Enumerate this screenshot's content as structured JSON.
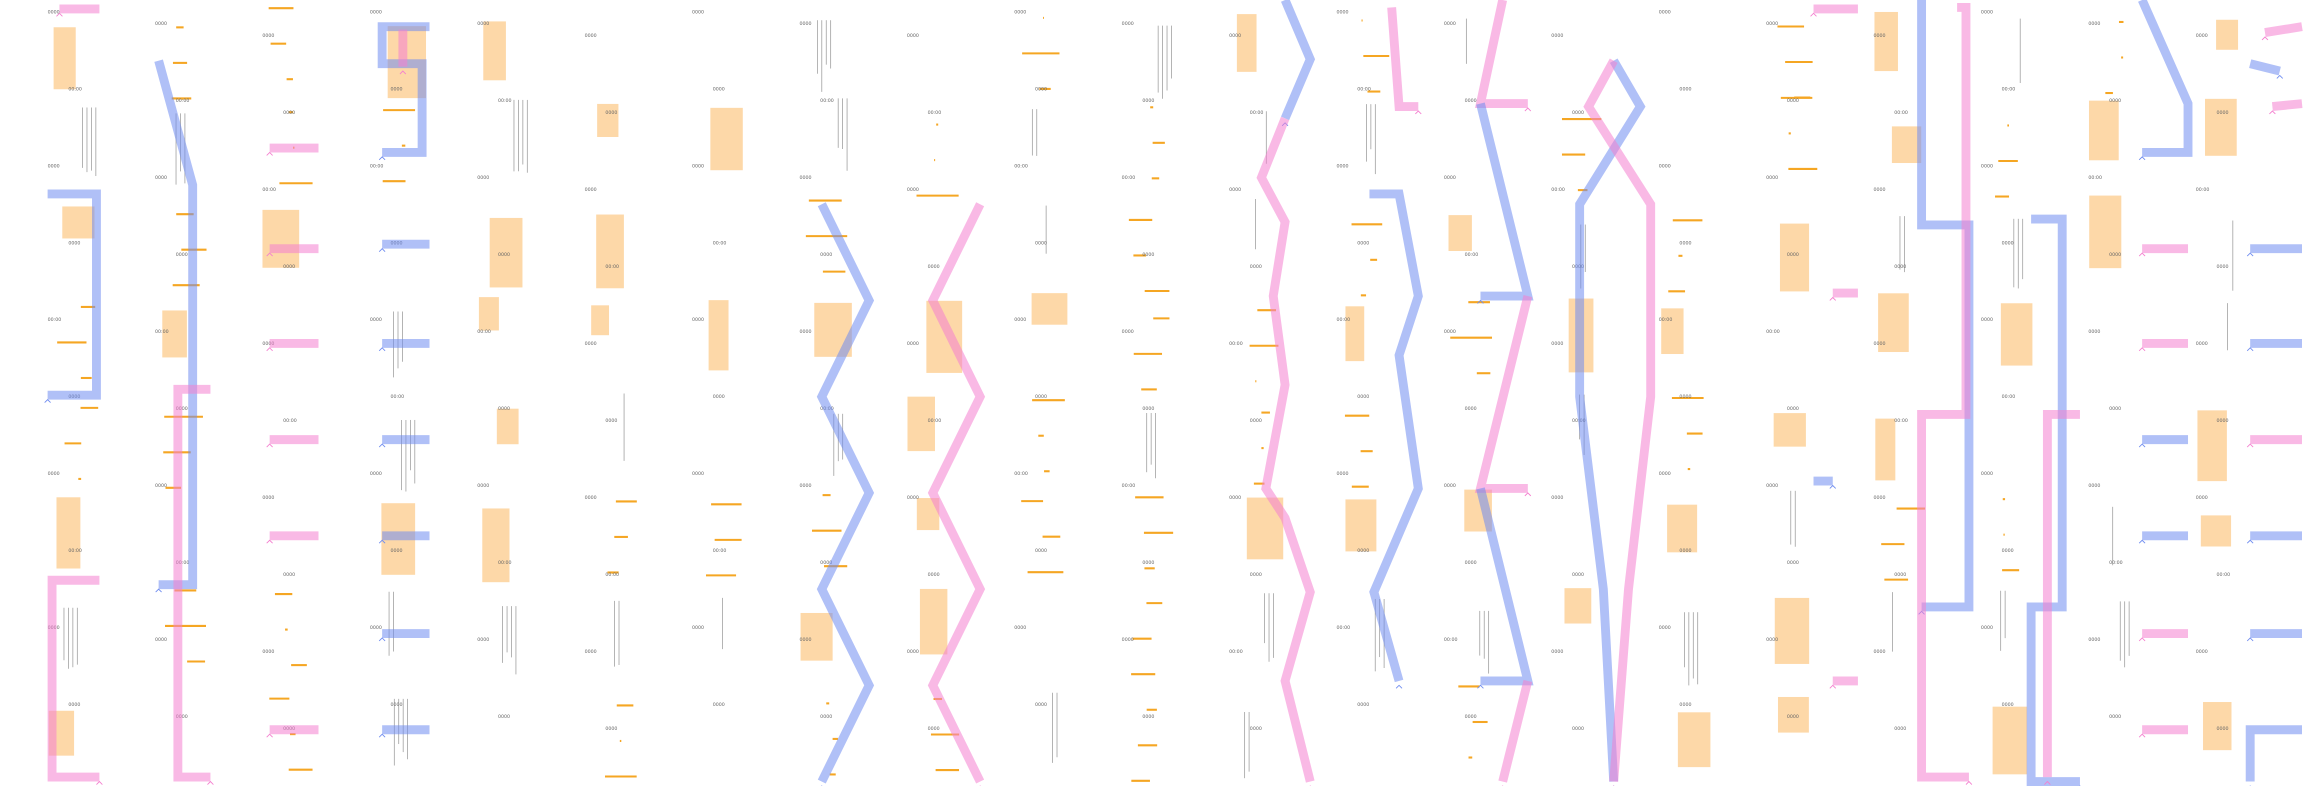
{
  "columns": [
    {
      "labels": [
        "0000",
        "00:00",
        "0000",
        "0000",
        "00:00",
        "0000",
        "0000",
        "00:00",
        "0000",
        "0000"
      ]
    },
    {
      "labels": [
        "0000",
        "00:00",
        "0000",
        "0000",
        "00:00",
        "0000",
        "0000",
        "00:00",
        "0000",
        "0000"
      ]
    },
    {
      "labels": [
        "0000",
        "0000",
        "00:00",
        "0000",
        "0000",
        "00:00",
        "0000",
        "0000",
        "0000",
        "0000"
      ]
    },
    {
      "labels": [
        "0000",
        "0000",
        "00:00",
        "0000",
        "0000",
        "00:00",
        "0000",
        "0000",
        "0000",
        "0000"
      ]
    },
    {
      "labels": [
        "0000",
        "00:00",
        "0000",
        "0000",
        "00:00",
        "0000",
        "0000",
        "00:00",
        "0000",
        "0000"
      ]
    },
    {
      "labels": [
        "0000",
        "0000",
        "0000",
        "00:00",
        "0000",
        "0000",
        "0000",
        "00:00",
        "0000",
        "0000"
      ]
    },
    {
      "labels": [
        "0000",
        "0000",
        "0000",
        "00:00",
        "0000",
        "0000",
        "0000",
        "00:00",
        "0000",
        "0000"
      ]
    },
    {
      "labels": [
        "0000",
        "00:00",
        "0000",
        "0000",
        "0000",
        "00:00",
        "0000",
        "0000",
        "0000",
        "0000"
      ]
    },
    {
      "labels": [
        "0000",
        "00:00",
        "0000",
        "0000",
        "0000",
        "00:00",
        "0000",
        "0000",
        "0000",
        "0000"
      ]
    },
    {
      "labels": [
        "0000",
        "0000",
        "00:00",
        "0000",
        "0000",
        "0000",
        "00:00",
        "0000",
        "0000",
        "0000"
      ]
    },
    {
      "labels": [
        "0000",
        "0000",
        "00:00",
        "0000",
        "0000",
        "0000",
        "00:00",
        "0000",
        "0000",
        "0000"
      ]
    },
    {
      "labels": [
        "0000",
        "00:00",
        "0000",
        "0000",
        "00:00",
        "0000",
        "0000",
        "0000",
        "00:00",
        "0000"
      ]
    },
    {
      "labels": [
        "0000",
        "00:00",
        "0000",
        "0000",
        "00:00",
        "0000",
        "0000",
        "0000",
        "00:00",
        "0000"
      ]
    },
    {
      "labels": [
        "0000",
        "0000",
        "0000",
        "00:00",
        "0000",
        "0000",
        "0000",
        "0000",
        "00:00",
        "0000"
      ]
    },
    {
      "labels": [
        "0000",
        "0000",
        "00:00",
        "0000",
        "0000",
        "00:00",
        "0000",
        "0000",
        "0000",
        "0000"
      ]
    },
    {
      "labels": [
        "0000",
        "0000",
        "0000",
        "0000",
        "00:00",
        "0000",
        "0000",
        "0000",
        "0000",
        "0000"
      ]
    },
    {
      "labels": [
        "0000",
        "0000",
        "0000",
        "0000",
        "00:00",
        "0000",
        "0000",
        "0000",
        "0000",
        "0000"
      ]
    },
    {
      "labels": [
        "0000",
        "00:00",
        "0000",
        "0000",
        "0000",
        "00:00",
        "0000",
        "0000",
        "0000",
        "0000"
      ]
    },
    {
      "labels": [
        "0000",
        "00:00",
        "0000",
        "0000",
        "0000",
        "00:00",
        "0000",
        "0000",
        "0000",
        "0000"
      ]
    },
    {
      "labels": [
        "0000",
        "0000",
        "00:00",
        "0000",
        "0000",
        "0000",
        "0000",
        "00:00",
        "0000",
        "0000"
      ]
    },
    {
      "labels": [
        "0000",
        "0000",
        "00:00",
        "0000",
        "0000",
        "0000",
        "0000",
        "00:00",
        "0000",
        "0000"
      ]
    }
  ]
}
